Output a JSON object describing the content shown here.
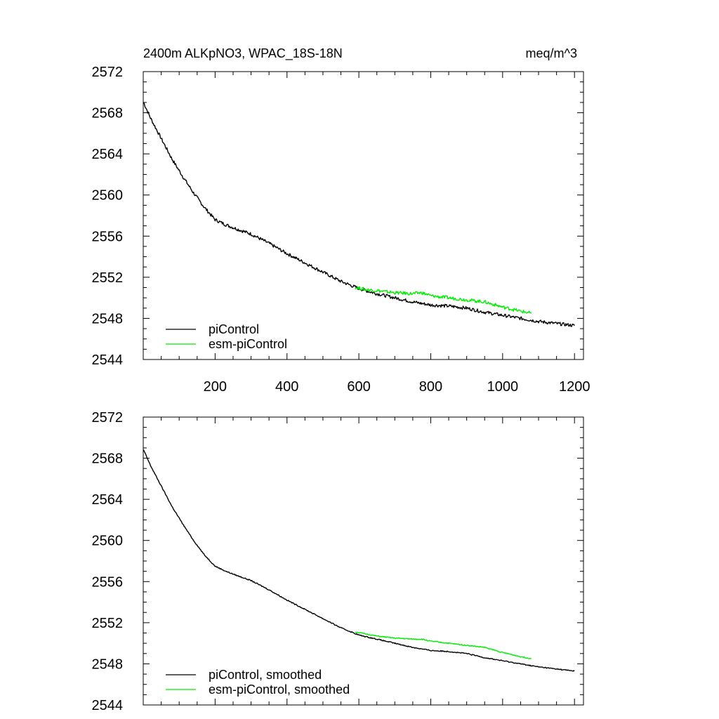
{
  "chart_data": [
    {
      "type": "line",
      "title": "2400m ALKpNO3, WPAC_18S-18N",
      "units": "meq/m^3",
      "xlim": [
        0,
        1225
      ],
      "ylim": [
        2544,
        2572
      ],
      "xticks": [
        200,
        400,
        600,
        800,
        1000,
        1200
      ],
      "xtick_labels": [
        "200",
        "400",
        "600",
        "800",
        "1000",
        "1200"
      ],
      "yticks": [
        2544,
        2548,
        2552,
        2556,
        2560,
        2564,
        2568,
        2572
      ],
      "ytick_labels": [
        "2544",
        "2548",
        "2552",
        "2556",
        "2560",
        "2564",
        "2568",
        "2572"
      ],
      "legend_location": "bottom-left",
      "series": [
        {
          "name": "piControl",
          "color": "#000000",
          "x": [
            1,
            20,
            50,
            80,
            110,
            140,
            170,
            200,
            230,
            260,
            300,
            350,
            400,
            450,
            500,
            550,
            600,
            650,
            700,
            750,
            800,
            850,
            900,
            950,
            1000,
            1050,
            1100,
            1150,
            1200
          ],
          "y": [
            2569.0,
            2567.5,
            2565.5,
            2563.5,
            2561.8,
            2560.2,
            2558.8,
            2557.6,
            2557.1,
            2556.7,
            2556.2,
            2555.3,
            2554.3,
            2553.4,
            2552.5,
            2551.6,
            2550.9,
            2550.4,
            2550.0,
            2549.6,
            2549.3,
            2549.2,
            2549.0,
            2548.6,
            2548.3,
            2548.0,
            2547.7,
            2547.5,
            2547.3
          ]
        },
        {
          "name": "esm-piControl",
          "color": "#00ee00",
          "x": [
            590,
            620,
            650,
            700,
            750,
            775,
            800,
            850,
            900,
            950,
            1000,
            1050,
            1080
          ],
          "y": [
            2551.0,
            2550.8,
            2550.7,
            2550.5,
            2550.4,
            2550.5,
            2550.2,
            2550.0,
            2549.8,
            2549.6,
            2549.1,
            2548.7,
            2548.5
          ]
        }
      ]
    },
    {
      "type": "line",
      "title": "",
      "units": "",
      "xlim": [
        0,
        1225
      ],
      "ylim": [
        2544,
        2572
      ],
      "xticks": [
        200,
        400,
        600,
        800,
        1000,
        1200
      ],
      "xtick_labels": [],
      "yticks": [
        2544,
        2548,
        2552,
        2556,
        2560,
        2564,
        2568,
        2572
      ],
      "ytick_labels": [
        "2544",
        "2548",
        "2552",
        "2556",
        "2560",
        "2564",
        "2568",
        "2572"
      ],
      "legend_location": "bottom-left",
      "series": [
        {
          "name": "piControl, smoothed",
          "color": "#000000",
          "x": [
            1,
            20,
            50,
            80,
            110,
            140,
            170,
            200,
            230,
            260,
            300,
            350,
            400,
            450,
            500,
            550,
            600,
            650,
            700,
            750,
            800,
            850,
            900,
            950,
            1000,
            1050,
            1100,
            1150,
            1200
          ],
          "y": [
            2568.8,
            2567.3,
            2565.3,
            2563.3,
            2561.6,
            2560.0,
            2558.6,
            2557.5,
            2557.0,
            2556.6,
            2556.1,
            2555.2,
            2554.2,
            2553.3,
            2552.4,
            2551.5,
            2550.8,
            2550.4,
            2550.0,
            2549.6,
            2549.3,
            2549.2,
            2549.0,
            2548.6,
            2548.3,
            2548.0,
            2547.7,
            2547.5,
            2547.3
          ]
        },
        {
          "name": "esm-piControl, smoothed",
          "color": "#00ee00",
          "x": [
            590,
            620,
            650,
            700,
            750,
            775,
            800,
            850,
            900,
            950,
            1000,
            1050,
            1080
          ],
          "y": [
            2551.1,
            2550.9,
            2550.7,
            2550.5,
            2550.4,
            2550.4,
            2550.2,
            2550.0,
            2549.8,
            2549.6,
            2549.1,
            2548.7,
            2548.5
          ]
        }
      ]
    }
  ]
}
